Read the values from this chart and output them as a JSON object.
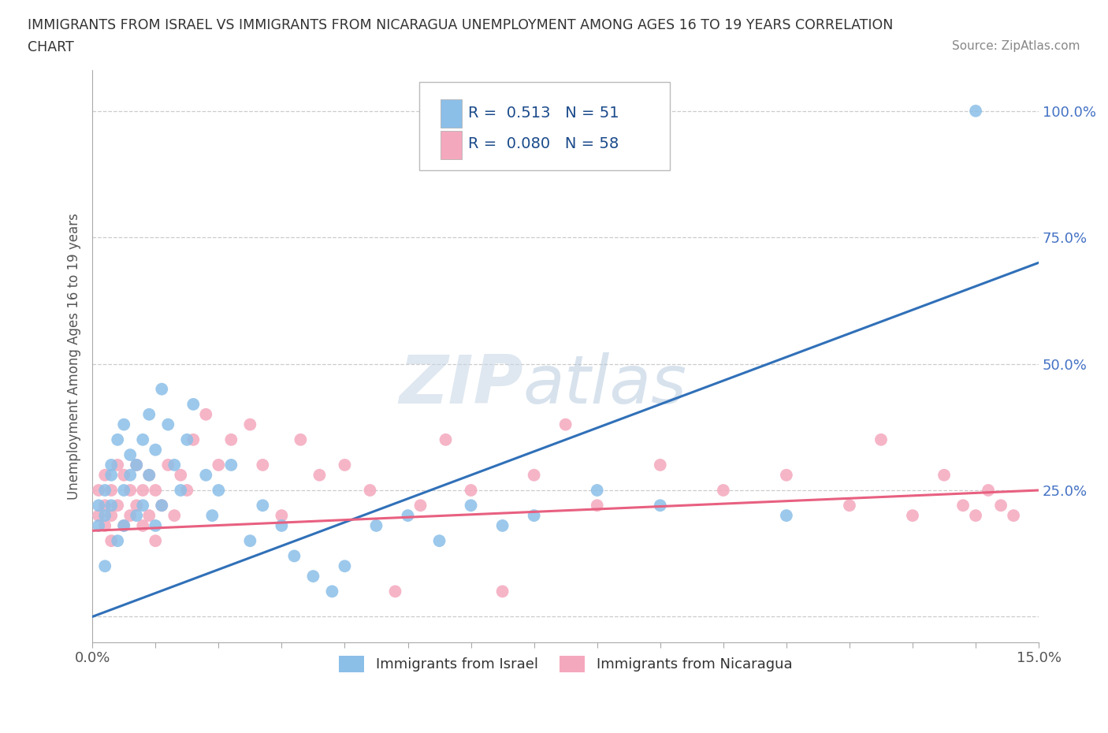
{
  "title_line1": "IMMIGRANTS FROM ISRAEL VS IMMIGRANTS FROM NICARAGUA UNEMPLOYMENT AMONG AGES 16 TO 19 YEARS CORRELATION",
  "title_line2": "CHART",
  "source": "Source: ZipAtlas.com",
  "ylabel": "Unemployment Among Ages 16 to 19 years",
  "xlim": [
    0.0,
    0.15
  ],
  "ylim": [
    -0.05,
    1.08
  ],
  "ytick_positions": [
    0.0,
    0.25,
    0.5,
    0.75,
    1.0
  ],
  "ytick_labels": [
    "",
    "25.0%",
    "50.0%",
    "75.0%",
    "100.0%"
  ],
  "israel_color": "#8bbfe8",
  "nicaragua_color": "#f4a8be",
  "israel_line_color": "#3070b8",
  "nicaragua_line_color": "#e86080",
  "legend_R_israel": "0.513",
  "legend_N_israel": "51",
  "legend_R_nicaragua": "0.080",
  "legend_N_nicaragua": "58",
  "watermark_text": "ZIPatlas",
  "background_color": "#ffffff",
  "grid_color": "#cccccc",
  "israel_x": [
    0.001,
    0.001,
    0.002,
    0.002,
    0.002,
    0.003,
    0.003,
    0.003,
    0.004,
    0.004,
    0.005,
    0.005,
    0.005,
    0.006,
    0.006,
    0.007,
    0.007,
    0.008,
    0.008,
    0.009,
    0.009,
    0.01,
    0.01,
    0.011,
    0.011,
    0.012,
    0.013,
    0.014,
    0.015,
    0.016,
    0.018,
    0.019,
    0.02,
    0.022,
    0.025,
    0.027,
    0.03,
    0.032,
    0.035,
    0.038,
    0.04,
    0.045,
    0.05,
    0.055,
    0.06,
    0.065,
    0.07,
    0.08,
    0.09,
    0.11,
    0.14
  ],
  "israel_y": [
    0.18,
    0.22,
    0.2,
    0.25,
    0.1,
    0.28,
    0.22,
    0.3,
    0.35,
    0.15,
    0.25,
    0.38,
    0.18,
    0.32,
    0.28,
    0.3,
    0.2,
    0.35,
    0.22,
    0.28,
    0.4,
    0.33,
    0.18,
    0.45,
    0.22,
    0.38,
    0.3,
    0.25,
    0.35,
    0.42,
    0.28,
    0.2,
    0.25,
    0.3,
    0.15,
    0.22,
    0.18,
    0.12,
    0.08,
    0.05,
    0.1,
    0.18,
    0.2,
    0.15,
    0.22,
    0.18,
    0.2,
    0.25,
    0.22,
    0.2,
    1.0
  ],
  "nicaragua_x": [
    0.001,
    0.001,
    0.002,
    0.002,
    0.002,
    0.003,
    0.003,
    0.003,
    0.004,
    0.004,
    0.005,
    0.005,
    0.006,
    0.006,
    0.007,
    0.007,
    0.008,
    0.008,
    0.009,
    0.009,
    0.01,
    0.01,
    0.011,
    0.012,
    0.013,
    0.014,
    0.015,
    0.016,
    0.018,
    0.02,
    0.022,
    0.025,
    0.027,
    0.03,
    0.033,
    0.036,
    0.04,
    0.044,
    0.048,
    0.052,
    0.056,
    0.06,
    0.065,
    0.07,
    0.075,
    0.08,
    0.09,
    0.1,
    0.11,
    0.12,
    0.125,
    0.13,
    0.135,
    0.138,
    0.14,
    0.142,
    0.144,
    0.146
  ],
  "nicaragua_y": [
    0.2,
    0.25,
    0.18,
    0.22,
    0.28,
    0.15,
    0.2,
    0.25,
    0.22,
    0.3,
    0.18,
    0.28,
    0.25,
    0.2,
    0.22,
    0.3,
    0.18,
    0.25,
    0.2,
    0.28,
    0.25,
    0.15,
    0.22,
    0.3,
    0.2,
    0.28,
    0.25,
    0.35,
    0.4,
    0.3,
    0.35,
    0.38,
    0.3,
    0.2,
    0.35,
    0.28,
    0.3,
    0.25,
    0.05,
    0.22,
    0.35,
    0.25,
    0.05,
    0.28,
    0.38,
    0.22,
    0.3,
    0.25,
    0.28,
    0.22,
    0.35,
    0.2,
    0.28,
    0.22,
    0.2,
    0.25,
    0.22,
    0.2
  ]
}
